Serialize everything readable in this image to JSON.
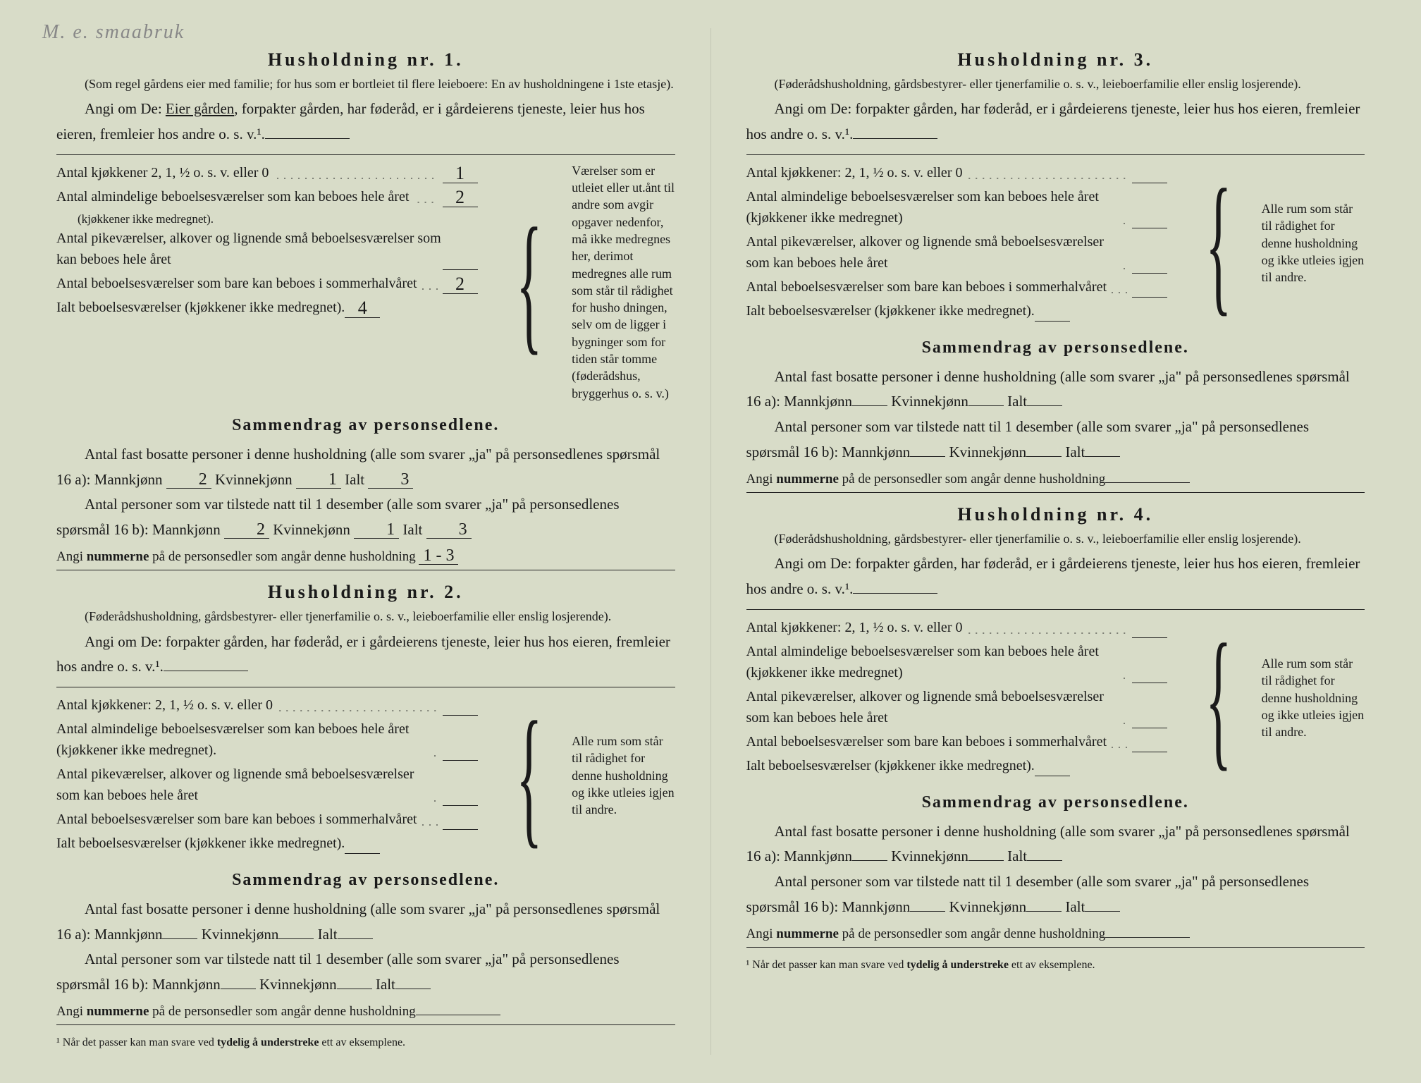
{
  "handwriting": "M. e. smaabruk",
  "households": [
    {
      "title": "Husholdning nr. 1.",
      "note": "(Som regel gårdens eier med familie; for hus som er bortleiet til flere leieboere: En av husholdningene i 1ste etasje).",
      "angi": "Angi om De: ",
      "angi_underlined": "Eier gården",
      "angi_rest": ", forpakter gården, har føderåd, er i gårdeierens tjeneste, leier hus hos eieren, fremleier hos andre o. s. v.¹.",
      "rows": {
        "kitchens_label": "Antal kjøkkener 2, 1, ½ o. s. v. eller 0",
        "kitchens_val": "1",
        "alm_label": "Antal almindelige beboelsesværelser som kan beboes hele året",
        "alm_sub": "(kjøkkener ikke medregnet).",
        "alm_val": "2",
        "pike_label": "Antal pikeværelser, alkover og lignende små beboelsesværelser som kan beboes hele året",
        "pike_val": "",
        "sommer_label": "Antal beboelsesværelser som bare kan beboes i sommerhalvåret",
        "sommer_val": "2",
        "ialt_label": "Ialt beboelsesværelser (kjøkkener ikke medregnet).",
        "ialt_val": "4"
      },
      "brace_text": "Værelser som er utleiet eller ut.ånt til andre som avgir opgaver nedenfor, må ikke medregnes her, derimot medregnes alle rum som står til rådighet for husho dningen, selv om de ligger i bygninger som for tiden står tomme (føderådshus, bryggerhus o. s. v.)",
      "summary_title": "Sammendrag av personsedlene.",
      "sum_line1": "Antal fast bosatte personer i denne husholdning (alle som svarer „ja\" på personsedlenes spørsmål 16 a): Mannkjønn",
      "mann1": "2",
      "kvinne_lbl": "Kvinnekjønn",
      "kvinne1": "1",
      "ialt_lbl": "Ialt",
      "ialt1": "3",
      "sum_line2": "Antal personer som var tilstede natt til 1 desember (alle som svarer „ja\" på personsedlenes spørsmål 16 b): Mannkjønn",
      "mann2": "2",
      "kvinne2": "1",
      "ialt2": "3",
      "angi_num": "Angi nummerne på de personsedler som angår denne husholdning",
      "angi_num_val": "1 - 3"
    },
    {
      "title": "Husholdning nr. 2.",
      "note": "(Føderådshusholdning, gårdsbestyrer- eller tjenerfamilie o. s. v., leieboerfamilie eller enslig losjerende).",
      "angi": "Angi om De: forpakter gården, har føderåd, er i gårdeierens tjeneste, leier hus hos eieren, fremleier hos andre o. s. v.¹.",
      "rows": {
        "kitchens_label": "Antal kjøkkener: 2, 1, ½ o. s. v. eller 0",
        "alm_label": "Antal almindelige beboelsesværelser som kan beboes hele året (kjøkkener ikke medregnet).",
        "pike_label": "Antal pikeværelser, alkover og lignende små beboelsesværelser som kan beboes hele året",
        "sommer_label": "Antal beboelsesværelser som bare kan beboes i sommerhalvåret",
        "ialt_label": "Ialt beboelsesværelser (kjøkkener ikke medregnet)."
      },
      "brace_text": "Alle rum som står til rådighet for denne husholdning og ikke utleies igjen til andre.",
      "summary_title": "Sammendrag av personsedlene.",
      "sum_line1": "Antal fast bosatte personer i denne husholdning (alle som svarer „ja\" på personsedlenes spørsmål 16 a): Mannkjønn",
      "sum_line2": "Antal personer som var tilstede natt til 1 desember (alle som svarer „ja\" på personsedlenes spørsmål 16 b): Mannkjønn",
      "kvinne_lbl": "Kvinnekjønn",
      "ialt_lbl": "Ialt",
      "angi_num": "Angi nummerne på de personsedler som angår denne husholdning"
    },
    {
      "title": "Husholdning nr. 3.",
      "note": "(Føderådshusholdning, gårdsbestyrer- eller tjenerfamilie o. s. v., leieboerfamilie eller enslig losjerende).",
      "angi": "Angi om De: forpakter gården, har føderåd, er i gårdeierens tjeneste, leier hus hos eieren, fremleier hos andre o. s. v.¹.",
      "rows": {
        "kitchens_label": "Antal kjøkkener: 2, 1, ½ o. s. v. eller 0",
        "alm_label": "Antal almindelige beboelsesværelser som kan beboes hele året (kjøkkener ikke medregnet)",
        "pike_label": "Antal pikeværelser, alkover og lignende små beboelsesværelser som kan beboes hele året",
        "sommer_label": "Antal beboelsesværelser som bare kan beboes i sommerhalvåret",
        "ialt_label": "Ialt beboelsesværelser (kjøkkener ikke medregnet)."
      },
      "brace_text": "Alle rum som står til rådighet for denne husholdning og ikke utleies igjen til andre.",
      "summary_title": "Sammendrag av personsedlene.",
      "sum_line1": "Antal fast bosatte personer i denne husholdning (alle som svarer „ja\" på personsedlenes spørsmål 16 a): Mannkjønn",
      "sum_line2": "Antal personer som var tilstede natt til 1 desember (alle som svarer „ja\" på personsedlenes spørsmål 16 b): Mannkjønn",
      "kvinne_lbl": "Kvinnekjønn",
      "ialt_lbl": "Ialt",
      "angi_num": "Angi nummerne på de personsedler som angår denne husholdning"
    },
    {
      "title": "Husholdning nr. 4.",
      "note": "(Føderådshusholdning, gårdsbestyrer- eller tjenerfamilie o. s. v., leieboerfamilie eller enslig losjerende).",
      "angi": "Angi om De: forpakter gården, har føderåd, er i gårdeierens tjeneste, leier hus hos eieren, fremleier hos andre o. s. v.¹.",
      "rows": {
        "kitchens_label": "Antal kjøkkener: 2, 1, ½ o. s. v. eller 0",
        "alm_label": "Antal almindelige beboelsesværelser som kan beboes hele året (kjøkkener ikke medregnet)",
        "pike_label": "Antal pikeværelser, alkover og lignende små beboelsesværelser som kan beboes hele året",
        "sommer_label": "Antal beboelsesværelser som bare kan beboes i sommerhalvåret",
        "ialt_label": "Ialt beboelsesværelser (kjøkkener ikke medregnet)."
      },
      "brace_text": "Alle rum som står til rådighet for denne husholdning og ikke utleies igjen til andre.",
      "summary_title": "Sammendrag av personsedlene.",
      "sum_line1": "Antal fast bosatte personer i denne husholdning (alle som svarer „ja\" på personsedlenes spørsmål 16 a): Mannkjønn",
      "sum_line2": "Antal personer som var tilstede natt til 1 desember (alle som svarer „ja\" på personsedlenes spørsmål 16 b): Mannkjønn",
      "kvinne_lbl": "Kvinnekjønn",
      "ialt_lbl": "Ialt",
      "angi_num": "Angi nummerne på de personsedler som angår denne husholdning"
    }
  ],
  "footnote": "¹ Når det passer kan man svare ved tydelig å understreke ett av eksemplene.",
  "colors": {
    "paper": "#d8dcc8",
    "ink": "#1a1a1a",
    "hand": "#888888"
  }
}
